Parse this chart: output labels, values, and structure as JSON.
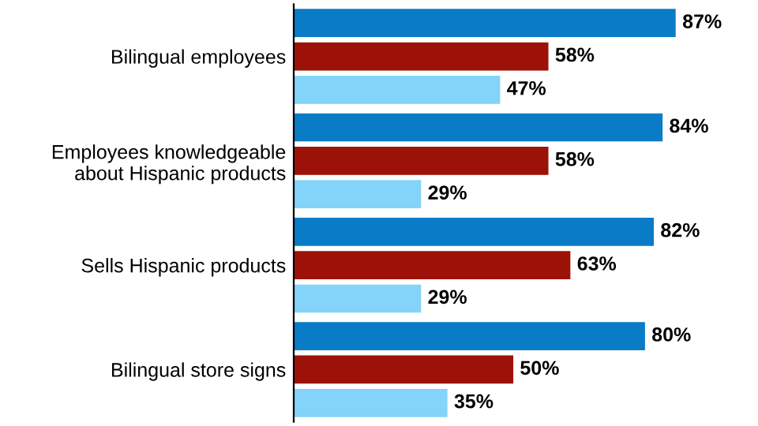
{
  "chart_data": {
    "type": "bar",
    "orientation": "horizontal",
    "categories": [
      "Bilingual employees",
      "Employees knowledgeable\nabout Hispanic products",
      "Sells Hispanic products",
      "Bilingual store signs"
    ],
    "series": [
      {
        "color": "#0a7bc6",
        "values": [
          87,
          84,
          82,
          80
        ],
        "value_labels": [
          "87%",
          "84%",
          "82%",
          "80%"
        ]
      },
      {
        "color": "#9c1208",
        "values": [
          58,
          58,
          63,
          50
        ],
        "value_labels": [
          "58%",
          "58%",
          "63%",
          "50%"
        ]
      },
      {
        "color": "#84d3f8",
        "values": [
          47,
          29,
          29,
          35
        ],
        "value_labels": [
          "47%",
          "29%",
          "29%",
          "35%"
        ]
      }
    ],
    "tick_labels": "y",
    "grid": false,
    "legend": false
  }
}
